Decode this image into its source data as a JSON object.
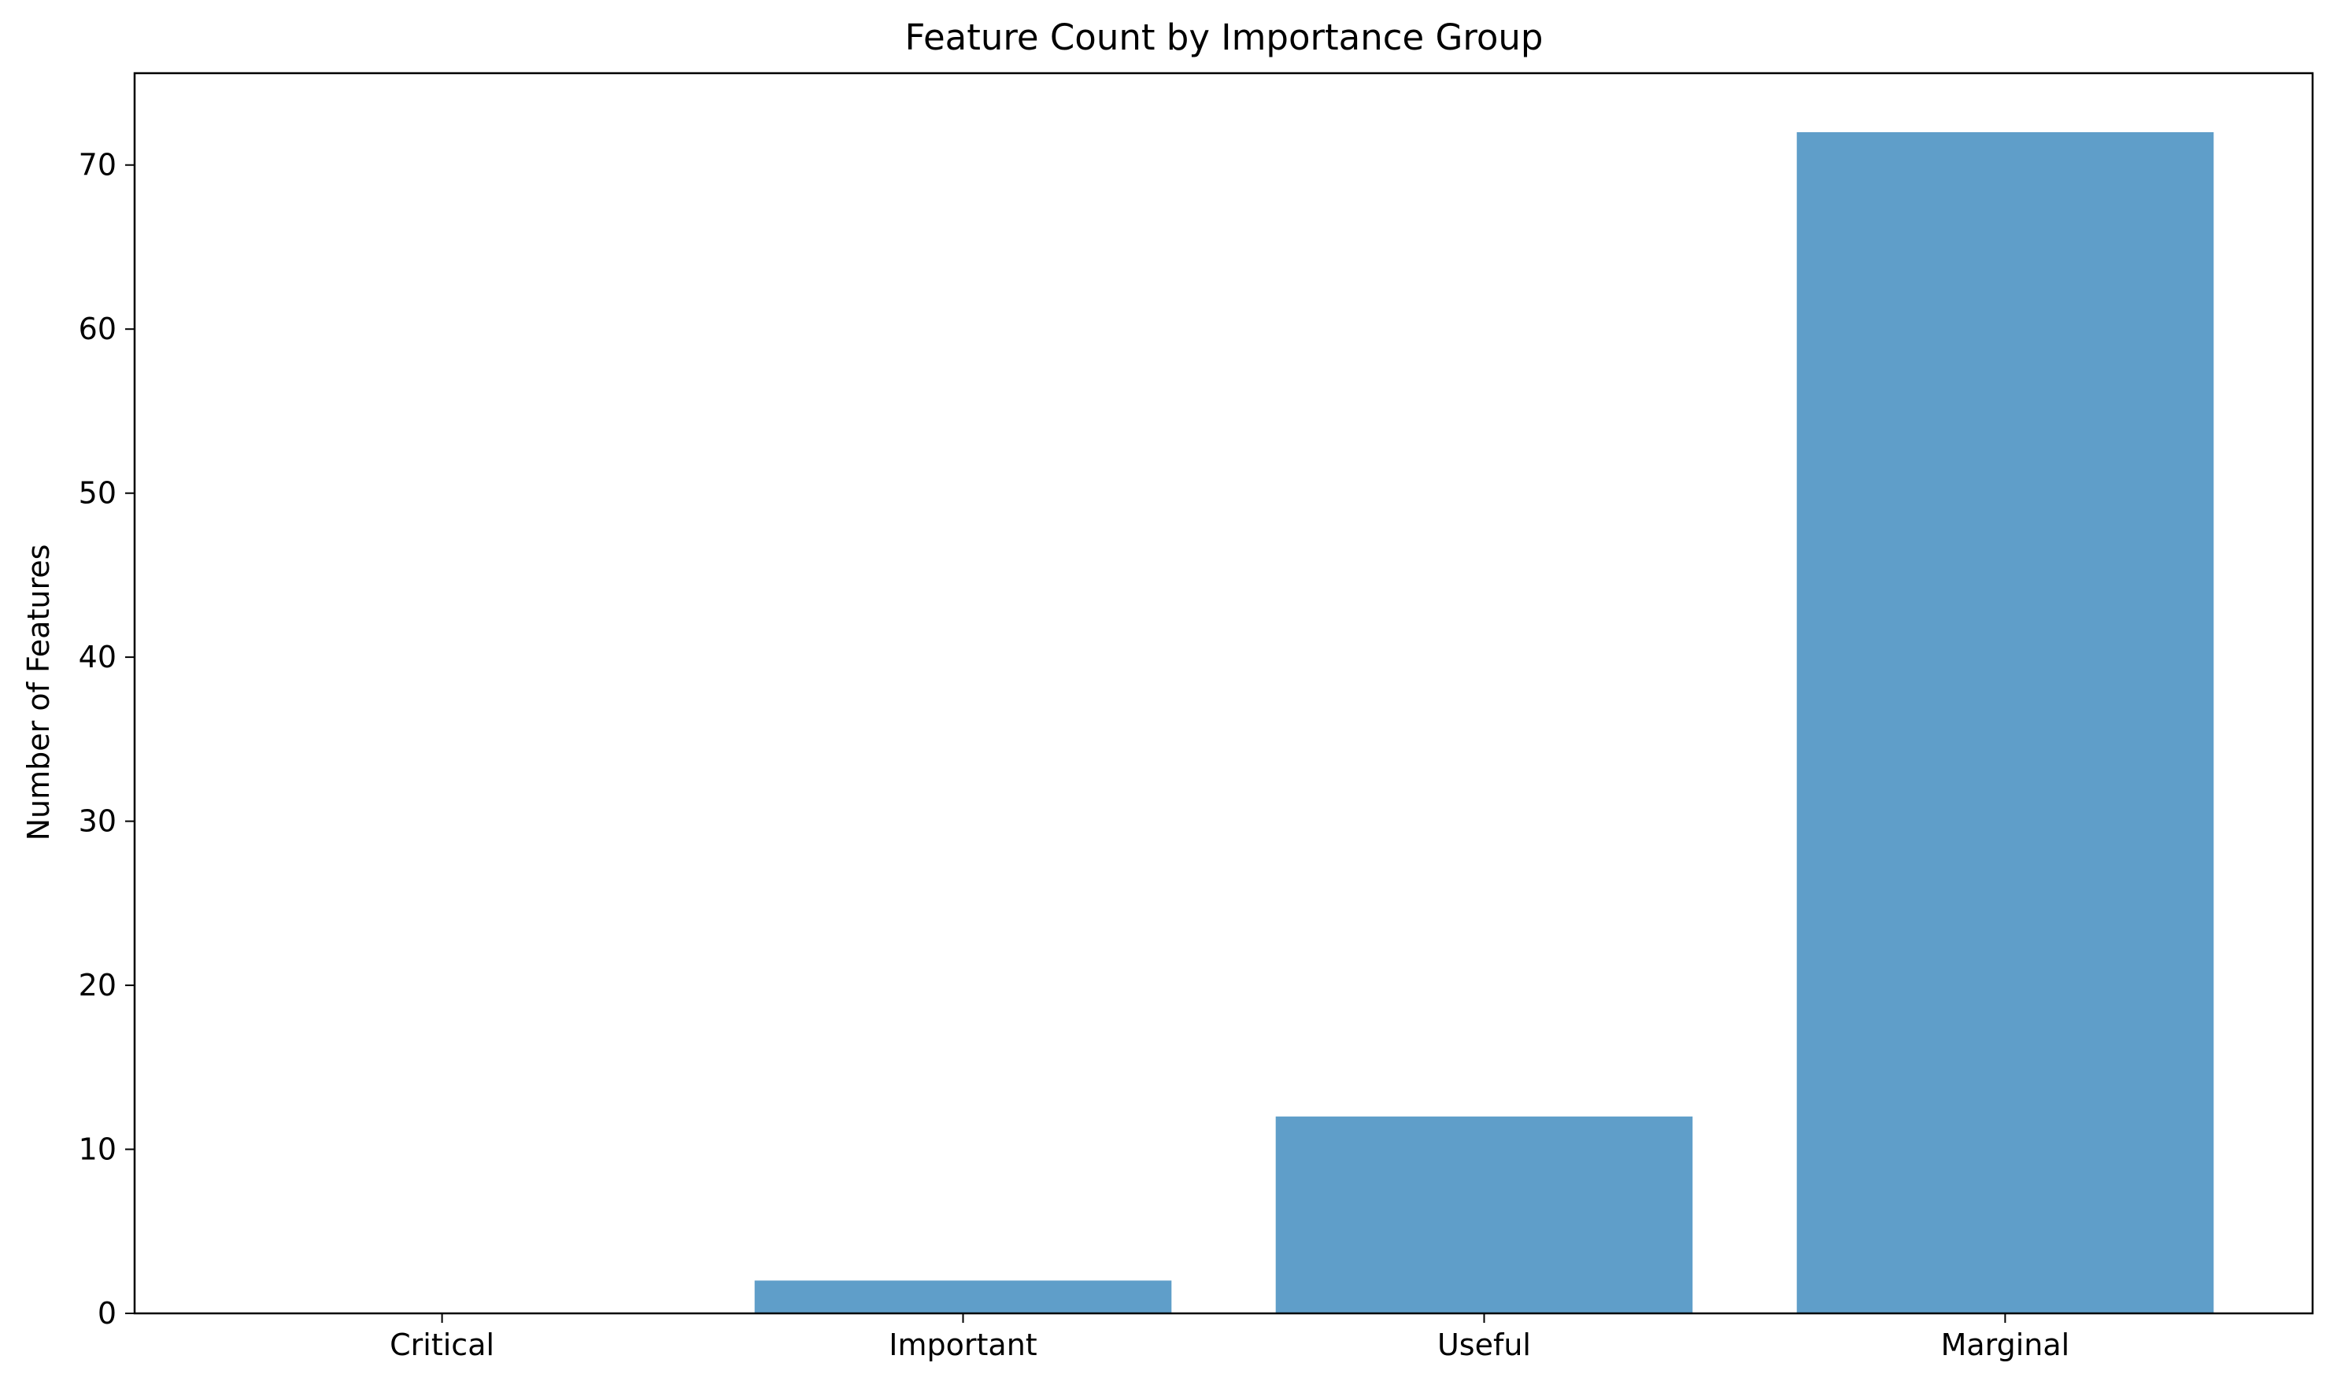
{
  "chart_data": {
    "type": "bar",
    "title": "Feature Count by Importance Group",
    "xlabel": "",
    "ylabel": "Number of Features",
    "categories": [
      "Critical",
      "Important",
      "Useful",
      "Marginal"
    ],
    "values": [
      0,
      2,
      12,
      72
    ],
    "ylim": [
      0,
      75.6
    ],
    "yticks": [
      0,
      10,
      20,
      30,
      40,
      50,
      60,
      70
    ],
    "bar_color": "#5f9ec9",
    "grid": false,
    "legend": "none"
  }
}
